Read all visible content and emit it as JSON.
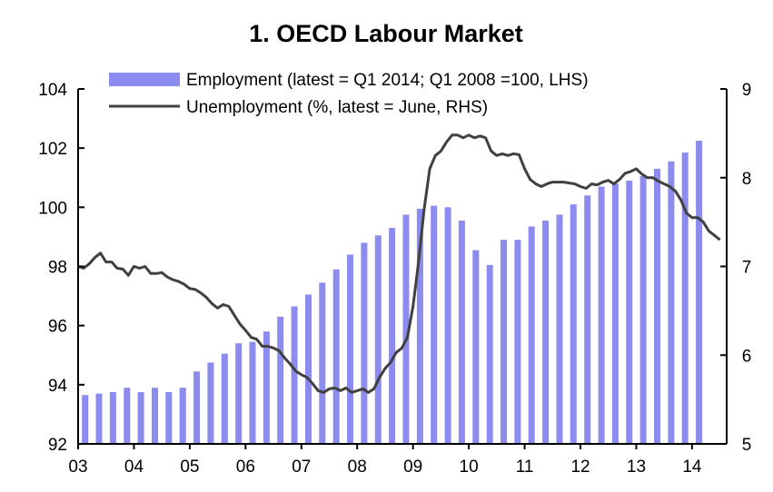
{
  "chart_data": {
    "type": "bar+line",
    "title": "1. OECD Labour Market",
    "x_ticks": [
      "03",
      "04",
      "05",
      "06",
      "07",
      "08",
      "09",
      "10",
      "11",
      "12",
      "13",
      "14"
    ],
    "left_axis": {
      "ylim": [
        92,
        104
      ],
      "ticks": [
        "92",
        "94",
        "96",
        "98",
        "100",
        "102",
        "104"
      ]
    },
    "right_axis": {
      "ylim": [
        5,
        9
      ],
      "ticks": [
        "5",
        "6",
        "7",
        "8",
        "9"
      ]
    },
    "legend_position": "top-left",
    "series": [
      {
        "name": "Employment (latest = Q1 2014; Q1 2008 =100, LHS)",
        "type": "bar",
        "axis": "left",
        "color": "#8c8cf0",
        "x": [
          2003.125,
          2003.375,
          2003.625,
          2003.875,
          2004.125,
          2004.375,
          2004.625,
          2004.875,
          2005.125,
          2005.375,
          2005.625,
          2005.875,
          2006.125,
          2006.375,
          2006.625,
          2006.875,
          2007.125,
          2007.375,
          2007.625,
          2007.875,
          2008.125,
          2008.375,
          2008.625,
          2008.875,
          2009.125,
          2009.375,
          2009.625,
          2009.875,
          2010.125,
          2010.375,
          2010.625,
          2010.875,
          2011.125,
          2011.375,
          2011.625,
          2011.875,
          2012.125,
          2012.375,
          2012.625,
          2012.875,
          2013.125,
          2013.375,
          2013.625,
          2013.875,
          2014.125
        ],
        "values": [
          93.65,
          93.7,
          93.75,
          93.9,
          93.75,
          93.9,
          93.75,
          93.9,
          94.45,
          94.75,
          95.05,
          95.4,
          95.45,
          95.8,
          96.3,
          96.65,
          97.05,
          97.45,
          97.9,
          98.4,
          98.8,
          99.05,
          99.3,
          99.75,
          99.95,
          100.05,
          100.0,
          99.55,
          98.55,
          98.05,
          98.9,
          98.9,
          99.35,
          99.55,
          99.75,
          100.1,
          100.4,
          100.7,
          100.8,
          100.9,
          101.05,
          101.3,
          101.55,
          101.85,
          102.25
        ]
      },
      {
        "name": "Unemployment (%, latest = June, RHS)",
        "type": "line",
        "axis": "right",
        "color": "#404040",
        "x": [
          2003.0,
          2003.1,
          2003.2,
          2003.3,
          2003.4,
          2003.5,
          2003.6,
          2003.7,
          2003.8,
          2003.9,
          2004.0,
          2004.1,
          2004.2,
          2004.3,
          2004.4,
          2004.5,
          2004.6,
          2004.7,
          2004.8,
          2004.9,
          2005.0,
          2005.1,
          2005.2,
          2005.3,
          2005.4,
          2005.5,
          2005.6,
          2005.7,
          2005.8,
          2005.9,
          2006.0,
          2006.1,
          2006.2,
          2006.3,
          2006.4,
          2006.5,
          2006.6,
          2006.7,
          2006.8,
          2006.9,
          2007.0,
          2007.1,
          2007.2,
          2007.3,
          2007.4,
          2007.5,
          2007.6,
          2007.7,
          2007.8,
          2007.9,
          2008.0,
          2008.1,
          2008.2,
          2008.3,
          2008.4,
          2008.5,
          2008.6,
          2008.7,
          2008.8,
          2008.9,
          2009.0,
          2009.1,
          2009.2,
          2009.3,
          2009.4,
          2009.5,
          2009.6,
          2009.7,
          2009.8,
          2009.9,
          2010.0,
          2010.1,
          2010.2,
          2010.3,
          2010.4,
          2010.5,
          2010.6,
          2010.7,
          2010.8,
          2010.9,
          2011.0,
          2011.1,
          2011.2,
          2011.3,
          2011.4,
          2011.5,
          2011.6,
          2011.7,
          2011.8,
          2011.9,
          2012.0,
          2012.1,
          2012.2,
          2012.3,
          2012.4,
          2012.5,
          2012.6,
          2012.7,
          2012.8,
          2012.9,
          2013.0,
          2013.1,
          2013.2,
          2013.3,
          2013.4,
          2013.5,
          2013.6,
          2013.7,
          2013.8,
          2013.9,
          2014.0,
          2014.1,
          2014.2,
          2014.3,
          2014.4,
          2014.5
        ],
        "values": [
          7.0,
          6.98,
          7.03,
          7.1,
          7.15,
          7.05,
          7.05,
          6.98,
          6.97,
          6.9,
          7.0,
          6.98,
          7.0,
          6.92,
          6.92,
          6.93,
          6.88,
          6.85,
          6.83,
          6.8,
          6.75,
          6.74,
          6.7,
          6.65,
          6.58,
          6.53,
          6.57,
          6.55,
          6.45,
          6.35,
          6.28,
          6.2,
          6.18,
          6.1,
          6.1,
          6.08,
          6.05,
          5.97,
          5.9,
          5.82,
          5.78,
          5.75,
          5.68,
          5.6,
          5.58,
          5.62,
          5.63,
          5.6,
          5.63,
          5.58,
          5.6,
          5.62,
          5.58,
          5.62,
          5.75,
          5.85,
          5.92,
          6.03,
          6.08,
          6.2,
          6.55,
          7.05,
          7.65,
          8.1,
          8.25,
          8.3,
          8.4,
          8.48,
          8.48,
          8.45,
          8.48,
          8.45,
          8.47,
          8.45,
          8.3,
          8.25,
          8.27,
          8.25,
          8.27,
          8.26,
          8.1,
          7.98,
          7.93,
          7.9,
          7.93,
          7.95,
          7.95,
          7.95,
          7.94,
          7.93,
          7.9,
          7.88,
          7.93,
          7.92,
          7.95,
          7.97,
          7.93,
          7.98,
          8.05,
          8.07,
          8.1,
          8.04,
          8.0,
          8.0,
          7.96,
          7.93,
          7.9,
          7.85,
          7.75,
          7.6,
          7.55,
          7.55,
          7.5,
          7.4,
          7.35,
          7.3
        ]
      }
    ]
  }
}
